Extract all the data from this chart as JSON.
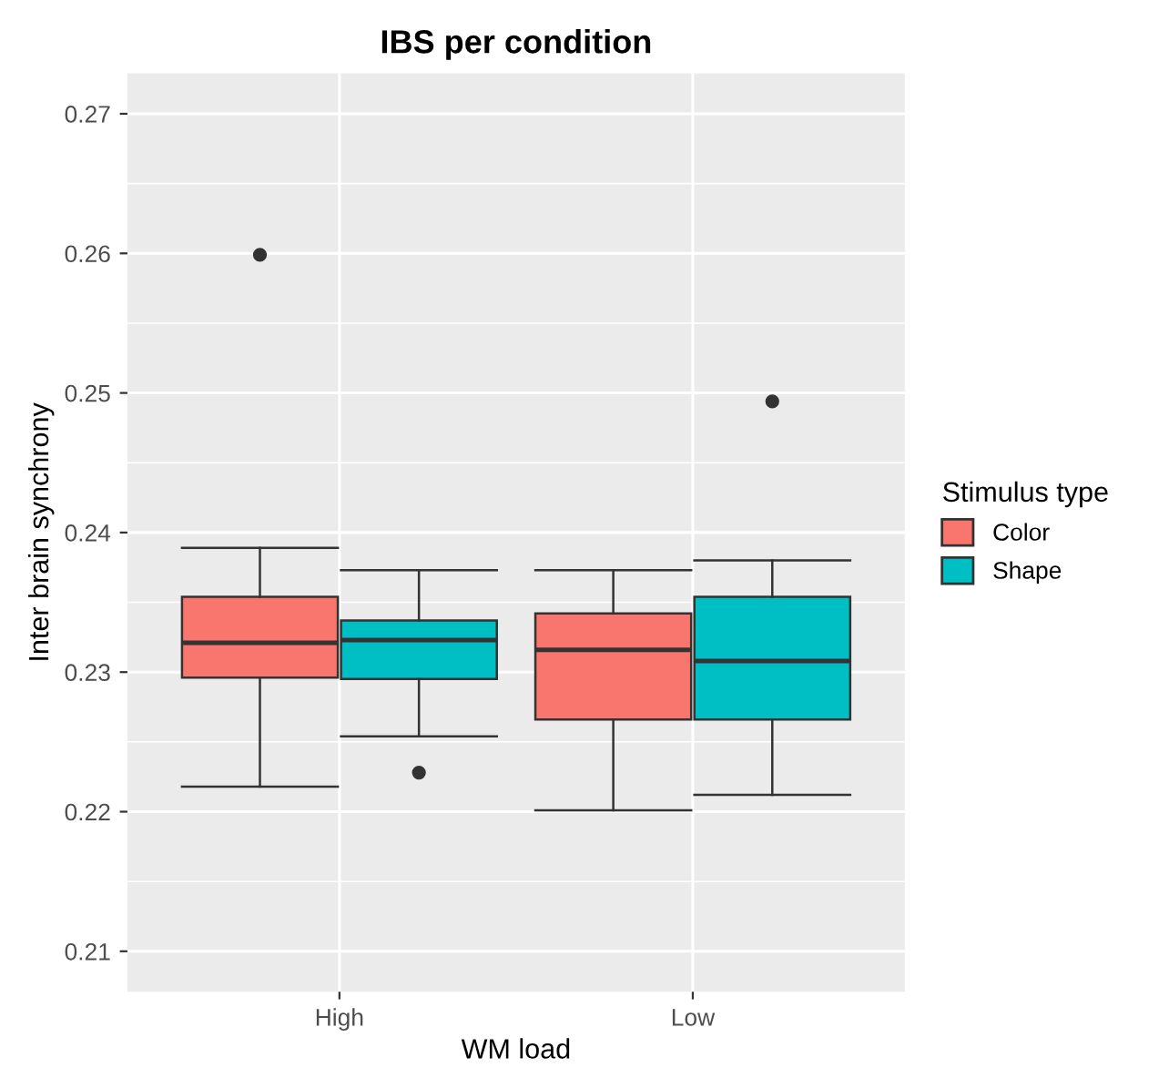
{
  "chart_data": {
    "type": "box",
    "title": "IBS per condition",
    "xlabel": "WM load",
    "ylabel": "Inter brain synchrony",
    "legend_title": "Stimulus type",
    "categories": [
      "High",
      "Low"
    ],
    "series": [
      {
        "name": "Color",
        "color": "#f8766d",
        "boxes": [
          {
            "low": 0.2218,
            "q1": 0.2296,
            "median": 0.2321,
            "q3": 0.2354,
            "high": 0.2389,
            "outliers": [
              0.2599
            ]
          },
          {
            "low": 0.2201,
            "q1": 0.2266,
            "median": 0.2316,
            "q3": 0.2342,
            "high": 0.2373
          }
        ]
      },
      {
        "name": "Shape",
        "color": "#00bfc4",
        "boxes": [
          {
            "low": 0.2254,
            "q1": 0.2295,
            "median": 0.2323,
            "q3": 0.2337,
            "high": 0.2373,
            "outliers": [
              0.2228
            ]
          },
          {
            "low": 0.2212,
            "q1": 0.2266,
            "median": 0.2308,
            "q3": 0.2354,
            "high": 0.238,
            "outliers": [
              0.2494
            ]
          }
        ]
      }
    ],
    "ylim": [
      0.2071,
      0.2729
    ],
    "yticks": [
      0.21,
      0.22,
      0.23,
      0.24,
      0.25,
      0.26,
      0.27
    ],
    "grid": true,
    "legend": "right"
  }
}
